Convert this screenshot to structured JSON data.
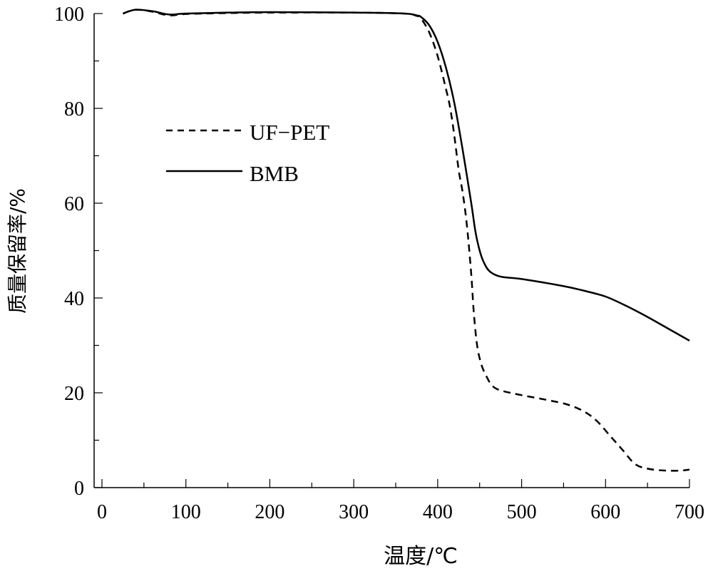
{
  "chart_data": {
    "type": "line",
    "title": "",
    "xlabel": "温度/℃",
    "ylabel": "质量保留率/%",
    "xlim": [
      0,
      700
    ],
    "ylim": [
      0,
      100
    ],
    "xticks": [
      0,
      100,
      200,
      300,
      400,
      500,
      600,
      700
    ],
    "yticks": [
      0,
      20,
      40,
      60,
      80,
      100
    ],
    "grid": false,
    "legend_position": "upper-left",
    "series": [
      {
        "name": "UF−PET",
        "style": "dashed",
        "color": "#000000",
        "points": [
          [
            25,
            100
          ],
          [
            40,
            100.8
          ],
          [
            60,
            100.4
          ],
          [
            80,
            99.6
          ],
          [
            100,
            99.9
          ],
          [
            150,
            100.1
          ],
          [
            200,
            100.2
          ],
          [
            300,
            100.2
          ],
          [
            360,
            100
          ],
          [
            375,
            99.5
          ],
          [
            380,
            99
          ],
          [
            390,
            96
          ],
          [
            400,
            91
          ],
          [
            410,
            84
          ],
          [
            415,
            80
          ],
          [
            420,
            74
          ],
          [
            425,
            67
          ],
          [
            430,
            62
          ],
          [
            435,
            55
          ],
          [
            440,
            45
          ],
          [
            443,
            37
          ],
          [
            447,
            30
          ],
          [
            452,
            26
          ],
          [
            458,
            23.5
          ],
          [
            465,
            21.5
          ],
          [
            475,
            20.5
          ],
          [
            500,
            19.5
          ],
          [
            530,
            18.5
          ],
          [
            555,
            17.5
          ],
          [
            575,
            16
          ],
          [
            590,
            14
          ],
          [
            605,
            11
          ],
          [
            620,
            8
          ],
          [
            635,
            5
          ],
          [
            650,
            4
          ],
          [
            670,
            3.6
          ],
          [
            690,
            3.6
          ],
          [
            700,
            3.8
          ]
        ]
      },
      {
        "name": "BMB",
        "style": "solid",
        "color": "#000000",
        "points": [
          [
            25,
            100
          ],
          [
            40,
            100.8
          ],
          [
            60,
            100.5
          ],
          [
            80,
            99.8
          ],
          [
            100,
            100
          ],
          [
            150,
            100.2
          ],
          [
            200,
            100.3
          ],
          [
            300,
            100.2
          ],
          [
            360,
            100
          ],
          [
            375,
            99.6
          ],
          [
            380,
            99.3
          ],
          [
            390,
            97.5
          ],
          [
            400,
            94
          ],
          [
            410,
            88.5
          ],
          [
            420,
            81
          ],
          [
            430,
            71
          ],
          [
            440,
            60
          ],
          [
            445,
            54
          ],
          [
            450,
            50
          ],
          [
            455,
            47.5
          ],
          [
            462,
            45.6
          ],
          [
            475,
            44.5
          ],
          [
            500,
            44
          ],
          [
            550,
            42.5
          ],
          [
            575,
            41.5
          ],
          [
            600,
            40.3
          ],
          [
            625,
            38.3
          ],
          [
            650,
            36
          ],
          [
            675,
            33.5
          ],
          [
            700,
            31
          ]
        ]
      }
    ]
  }
}
